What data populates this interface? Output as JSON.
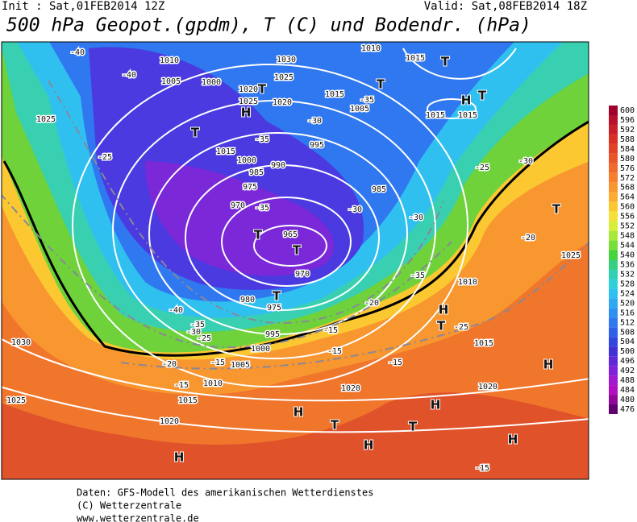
{
  "header": {
    "init": "Init : Sat,01FEB2014 12Z",
    "valid": "Valid: Sat,08FEB2014 18Z",
    "title": "500 hPa Geopot.(gpdm), T (C) und Bodendr. (hPa)"
  },
  "map": {
    "labels": [
      "-40",
      "1010",
      "1005",
      "1000",
      "-40",
      "1025",
      "1020",
      "1025",
      "1020",
      "1025",
      "1030",
      "1015",
      "1005",
      "-35",
      "1010",
      "1015",
      "1015",
      "1015",
      "H",
      "H",
      "T",
      "T",
      "T",
      "T",
      "T",
      "-30",
      "995",
      "-35",
      "1015",
      "1000",
      "985",
      "990",
      "975",
      "970",
      "-35",
      "965",
      "T",
      "T",
      "-30",
      "985",
      "-30",
      "-25",
      "-30",
      "T",
      "-20",
      "1025",
      "-35",
      "1010",
      "H",
      "T",
      "-25",
      "1015",
      "970",
      "980",
      "975",
      "T",
      "-40",
      "-35",
      "-30",
      "-25",
      "995",
      "1000",
      "1005",
      "-20",
      "-15",
      "-15",
      "1010",
      "1015",
      "-20",
      "-15",
      "-15",
      "-15",
      "1030",
      "1025",
      "1020",
      "1020",
      "1020",
      "H",
      "H",
      "H",
      "H",
      "H",
      "H",
      "T",
      "T",
      "-15",
      "-25"
    ]
  },
  "legend": {
    "values": [
      600,
      596,
      592,
      588,
      584,
      580,
      576,
      572,
      568,
      564,
      560,
      556,
      552,
      548,
      544,
      540,
      536,
      532,
      528,
      524,
      520,
      516,
      512,
      508,
      504,
      500,
      496,
      492,
      488,
      484,
      480,
      476
    ],
    "colors": [
      "#a0002a",
      "#b8102a",
      "#c82028",
      "#d83025",
      "#e04228",
      "#e8562a",
      "#f06a2c",
      "#f4802e",
      "#f89630",
      "#fcac30",
      "#fcc832",
      "#f4e038",
      "#d8ee3a",
      "#a8e83a",
      "#78de3a",
      "#48d23c",
      "#38d080",
      "#30d0b0",
      "#30d0d8",
      "#30c0f0",
      "#30a8f0",
      "#3090f0",
      "#3078f0",
      "#3060e8",
      "#3048e0",
      "#4030d8",
      "#6028d8",
      "#8020d8",
      "#a018d0",
      "#b010c0",
      "#900898",
      "#600070"
    ]
  },
  "footer": {
    "lines": [
      "Daten: GFS-Modell des amerikanischen Wetterdienstes",
      "(C) Wetterzentrale",
      "www.wetterzentrale.de"
    ]
  }
}
